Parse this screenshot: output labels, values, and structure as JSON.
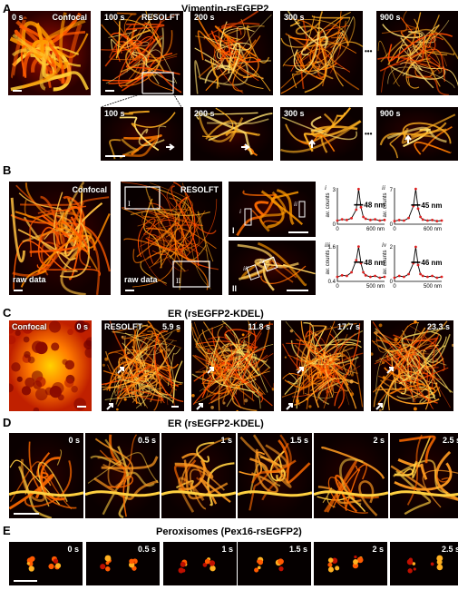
{
  "panel_A": {
    "letter": "A",
    "title": "Vimentin-rsEGFP2",
    "top_labels": [
      "0 s",
      "100 s",
      "200 s",
      "300 s",
      "900 s"
    ],
    "confocal_label": "Confocal",
    "resolft_label": "RESOLFT",
    "ellipsis": "•••",
    "zoom_labels": [
      "100 s",
      "200 s",
      "300 s",
      "900 s"
    ]
  },
  "panel_B": {
    "letter": "B",
    "confocal_label": "Confocal",
    "resolft_label": "RESOLFT",
    "raw_label": "raw data",
    "roi_labels": [
      "I",
      "II"
    ],
    "sub_labels": [
      "i",
      "ii",
      "iii",
      "iv"
    ],
    "inset_labels": [
      "I",
      "II"
    ]
  },
  "panel_C": {
    "letter": "C",
    "title": "ER (rsEGFP2-KDEL)",
    "confocal_label": "Confocal",
    "resolft_label": "RESOLFT",
    "time_labels": [
      "0 s",
      "5.9 s",
      "11.8 s",
      "17.7 s",
      "23.3 s"
    ]
  },
  "panel_D": {
    "letter": "D",
    "title": "ER (rsEGFP2-KDEL)",
    "time_labels": [
      "0 s",
      "0.5 s",
      "1 s",
      "1.5 s",
      "2 s",
      "2.5 s"
    ]
  },
  "panel_E": {
    "letter": "E",
    "title": "Peroxisomes (Pex16-rsEGFP2)",
    "time_labels": [
      "0 s",
      "0.5 s",
      "1 s",
      "1.5 s",
      "2 s",
      "2.5 s"
    ]
  },
  "chart_data": [
    {
      "type": "line",
      "id": "i",
      "ylabel": "av. counts",
      "ylim": [
        0,
        3
      ],
      "yticks": [
        "0",
        "3"
      ],
      "xticks": [
        "0",
        "600 nm"
      ],
      "fwhm": "48 nm",
      "x": [
        0,
        60,
        120,
        180,
        240,
        270,
        300,
        330,
        360,
        420,
        480,
        540,
        600
      ],
      "y": [
        0.3,
        0.4,
        0.35,
        0.5,
        1.2,
        2.9,
        1.4,
        0.6,
        0.45,
        0.35,
        0.4,
        0.3,
        0.35
      ]
    },
    {
      "type": "line",
      "id": "ii",
      "ylabel": "av. counts",
      "ylim": [
        0,
        7
      ],
      "yticks": [
        "0",
        "7"
      ],
      "xticks": [
        "0",
        "600 nm"
      ],
      "fwhm": "45 nm",
      "x": [
        0,
        60,
        120,
        180,
        240,
        270,
        300,
        330,
        360,
        420,
        480,
        540,
        600
      ],
      "y": [
        0.6,
        0.8,
        0.7,
        1.2,
        3.5,
        6.8,
        3.0,
        1.4,
        0.9,
        0.7,
        0.8,
        0.6,
        0.7
      ]
    },
    {
      "type": "line",
      "id": "iii",
      "ylabel": "av. counts",
      "ylim": [
        0.4,
        1.6
      ],
      "yticks": [
        "0.4",
        "1.6"
      ],
      "xticks": [
        "0",
        "500 nm"
      ],
      "fwhm": "48 nm",
      "x": [
        0,
        50,
        100,
        150,
        200,
        225,
        250,
        275,
        300,
        350,
        400,
        450,
        500
      ],
      "y": [
        0.55,
        0.6,
        0.58,
        0.7,
        1.1,
        1.55,
        1.0,
        0.7,
        0.6,
        0.55,
        0.58,
        0.52,
        0.55
      ]
    },
    {
      "type": "line",
      "id": "iv",
      "ylabel": "av. counts",
      "ylim": [
        0,
        2
      ],
      "yticks": [
        "0",
        "2"
      ],
      "xticks": [
        "0",
        "500 nm"
      ],
      "fwhm": "46 nm",
      "x": [
        0,
        50,
        100,
        150,
        200,
        225,
        250,
        275,
        300,
        350,
        400,
        450,
        500
      ],
      "y": [
        0.2,
        0.3,
        0.25,
        0.4,
        1.0,
        1.9,
        0.9,
        0.4,
        0.3,
        0.25,
        0.3,
        0.2,
        0.25
      ]
    }
  ]
}
